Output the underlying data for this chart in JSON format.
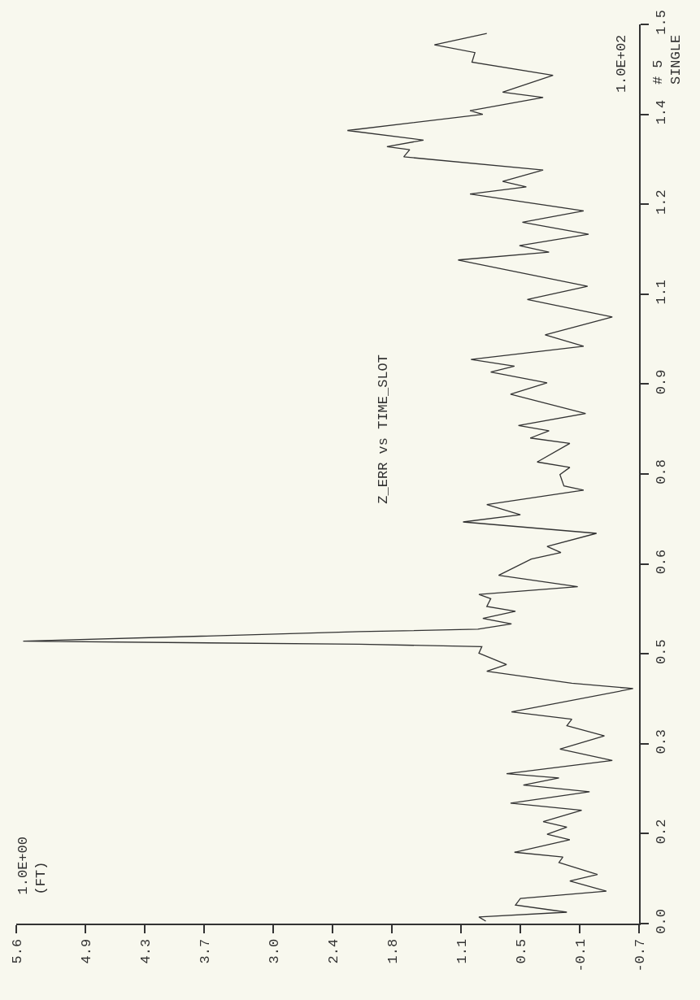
{
  "chart_data": {
    "type": "line",
    "title": "Z_ERR vs TIME_SLOT",
    "ylabel": "1.0E+02",
    "annotations": [
      "# 5\nSINGLE",
      "1.0E+00\n(FT)"
    ],
    "x": [
      0.85,
      0.92,
      0.03,
      0.55,
      0.5,
      -0.37,
      0.0,
      -0.28,
      0.11,
      0.07,
      0.56,
      0.0,
      0.23,
      0.03,
      0.27,
      -0.12,
      0.6,
      -0.2,
      0.47,
      0.11,
      0.64,
      -0.43,
      0.1,
      -0.35,
      0.03,
      -0.02,
      0.59,
      -0.64,
      -0.02,
      0.84,
      0.64,
      0.92,
      0.89,
      2.13,
      5.53,
      2.13,
      0.93,
      0.59,
      0.88,
      0.55,
      0.84,
      0.8,
      0.92,
      -0.08,
      0.72,
      0.39,
      0.09,
      0.23,
      -0.27,
      1.08,
      0.5,
      0.84,
      -0.14,
      0.06,
      0.1,
      0.0,
      0.33,
      0.0,
      0.4,
      0.21,
      0.52,
      -0.16,
      0.6,
      0.23,
      0.8,
      0.56,
      1.0,
      -0.14,
      0.25,
      -0.43,
      0.43,
      -0.18,
      1.13,
      0.21,
      0.51,
      -0.19,
      0.48,
      -0.14,
      1.01,
      0.44,
      0.68,
      0.27,
      1.68,
      1.62,
      1.85,
      1.48,
      2.25,
      0.88,
      1.01,
      0.27,
      0.68,
      0.17,
      0.99,
      0.96,
      1.37,
      0.84
    ],
    "series": [
      {
        "color": "#333333",
        "values": [
          0.004,
          0.011,
          0.019,
          0.031,
          0.042,
          0.054,
          0.071,
          0.082,
          0.102,
          0.111,
          0.119,
          0.14,
          0.149,
          0.161,
          0.17,
          0.189,
          0.201,
          0.22,
          0.231,
          0.243,
          0.25,
          0.272,
          0.291,
          0.313,
          0.33,
          0.341,
          0.353,
          0.392,
          0.401,
          0.421,
          0.432,
          0.451,
          0.462,
          0.466,
          0.471,
          0.487,
          0.491,
          0.5,
          0.509,
          0.521,
          0.529,
          0.542,
          0.549,
          0.562,
          0.581,
          0.608,
          0.619,
          0.629,
          0.651,
          0.67,
          0.682,
          0.699,
          0.723,
          0.73,
          0.749,
          0.761,
          0.77,
          0.801,
          0.81,
          0.822,
          0.831,
          0.851,
          0.883,
          0.902,
          0.92,
          0.93,
          0.941,
          0.963,
          0.982,
          1.012,
          1.041,
          1.063,
          1.107,
          1.12,
          1.131,
          1.15,
          1.17,
          1.189,
          1.217,
          1.229,
          1.238,
          1.257,
          1.279,
          1.291,
          1.296,
          1.307,
          1.323,
          1.35,
          1.356,
          1.378,
          1.387,
          1.415,
          1.437,
          1.453,
          1.466,
          1.485
        ]
      }
    ],
    "xlim": [
      5.6,
      -0.7
    ],
    "xticks": [
      {
        "value": -0.7,
        "label": "-0.7"
      },
      {
        "value": -0.1,
        "label": "-0.1"
      },
      {
        "value": 0.5,
        "label": "0.5"
      },
      {
        "value": 1.1,
        "label": "1.1"
      },
      {
        "value": 1.8,
        "label": "1.8"
      },
      {
        "value": 2.4,
        "label": "2.4"
      },
      {
        "value": 3.0,
        "label": "3.0"
      },
      {
        "value": 3.7,
        "label": "3.7"
      },
      {
        "value": 4.3,
        "label": "4.3"
      },
      {
        "value": 4.9,
        "label": "4.9"
      },
      {
        "value": 5.6,
        "label": "5.6"
      }
    ],
    "ylim": [
      0,
      1.5
    ],
    "yticks": [
      {
        "value": 0,
        "label": "0.0"
      },
      {
        "value": 0.15,
        "label": "0.2"
      },
      {
        "value": 0.3,
        "label": "0.3"
      },
      {
        "value": 0.45,
        "label": "0.5"
      },
      {
        "value": 0.6,
        "label": "0.6"
      },
      {
        "value": 0.75,
        "label": "0.8"
      },
      {
        "value": 0.9,
        "label": "0.9"
      },
      {
        "value": 1.05,
        "label": "1.1"
      },
      {
        "value": 1.2,
        "label": "1.2"
      },
      {
        "value": 1.35,
        "label": "1.4"
      },
      {
        "value": 1.5,
        "label": "1.5"
      }
    ],
    "grid": false,
    "marker": "none",
    "line_style": "solid"
  }
}
